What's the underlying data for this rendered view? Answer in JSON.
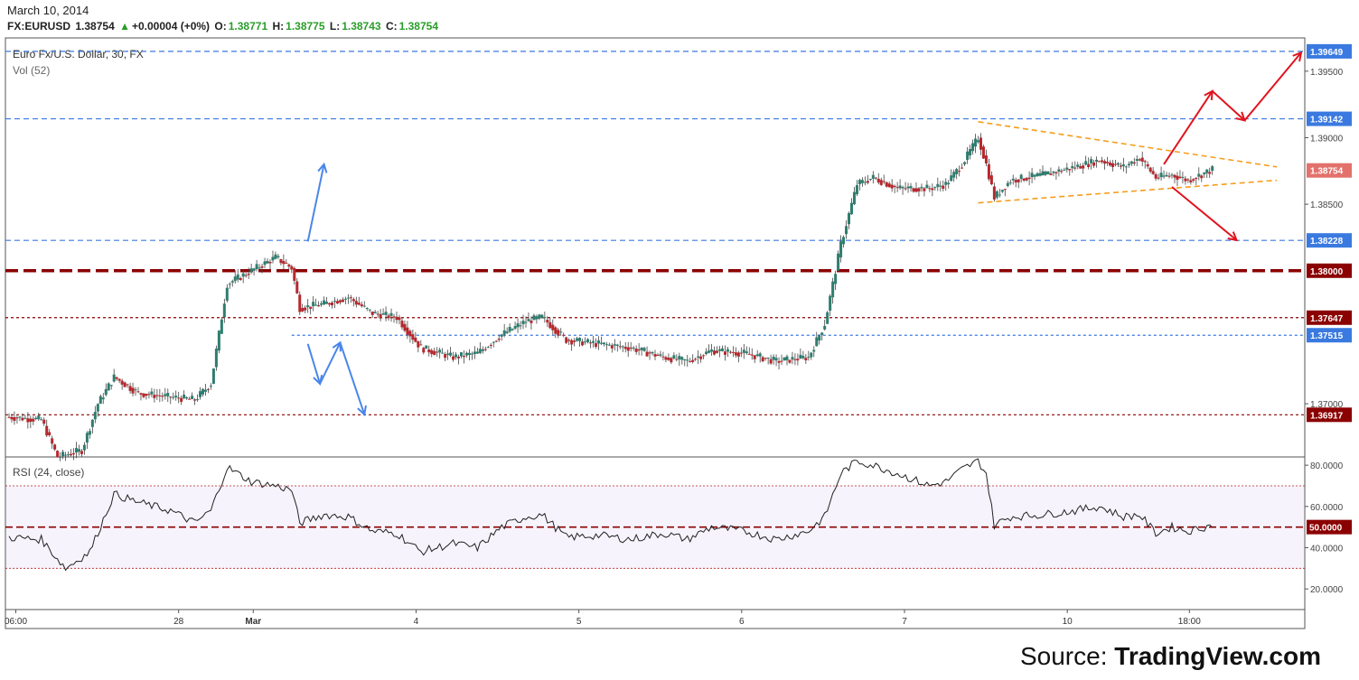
{
  "header": {
    "date": "March 10, 2014",
    "symbol": "FX:EURUSD",
    "last": "1.38754",
    "change_arrow": "up-triangle-icon",
    "change": "+0.00004 (+0%)",
    "open_label": "O:",
    "open": "1.38771",
    "high_label": "H:",
    "high": "1.38775",
    "low_label": "L:",
    "low": "1.38743",
    "close_label": "C:",
    "close": "1.38754"
  },
  "colors": {
    "up": "#2a9d2a",
    "candle_up": "#2f7d6f",
    "candle_down": "#b5282d",
    "level_blue": "#3a7ae0",
    "level_red": "#8b0000",
    "price_tag": "#e3716b",
    "pattern": "#f59d1b",
    "arrow_red": "#e0141e",
    "arrow_blue": "#4a86e8"
  },
  "chart_data": [
    {
      "type": "candlestick",
      "title": "Euro Fx/U.S. Dollar, 30, FX",
      "subtitle": "Vol (52)",
      "ylim": [
        1.366,
        1.3975
      ],
      "x_tick_labels": [
        "06:00",
        "28",
        "Mar",
        "4",
        "5",
        "6",
        "7",
        "10",
        "18:00"
      ],
      "y_tick_labels": [
        "1.39500",
        "1.39000",
        "1.38500",
        "1.37000"
      ],
      "y_ticks": [
        1.395,
        1.39,
        1.385,
        1.37
      ],
      "level_labels": [
        "1.39649",
        "1.39142",
        "1.38754",
        "1.38228",
        "1.38000",
        "1.37647",
        "1.37515",
        "1.36917"
      ],
      "levels": [
        {
          "value": 1.39649,
          "label": "1.39649",
          "color": "#3a7ae0",
          "style": "dashed"
        },
        {
          "value": 1.39142,
          "label": "1.39142",
          "color": "#3a7ae0",
          "style": "dashed"
        },
        {
          "value": 1.38228,
          "label": "1.38228",
          "color": "#3a7ae0",
          "style": "dashed"
        },
        {
          "value": 1.38,
          "label": "1.38000",
          "color": "#8b0000",
          "style": "thick-dashed"
        },
        {
          "value": 1.37647,
          "label": "1.37647",
          "color": "#8b0000",
          "style": "dotted"
        },
        {
          "value": 1.37515,
          "label": "1.37515",
          "color": "#3a7ae0",
          "style": "dotted"
        },
        {
          "value": 1.36917,
          "label": "1.36917",
          "color": "#8b0000",
          "style": "dotted"
        }
      ],
      "price_label": "1.38754",
      "price": 1.38754,
      "price_path": [
        {
          "x": 0,
          "y": 1.369
        },
        {
          "x": 4,
          "y": 1.3688
        },
        {
          "x": 6,
          "y": 1.366
        },
        {
          "x": 9,
          "y": 1.3665
        },
        {
          "x": 11,
          "y": 1.37
        },
        {
          "x": 13,
          "y": 1.372
        },
        {
          "x": 16,
          "y": 1.3708
        },
        {
          "x": 20,
          "y": 1.3705
        },
        {
          "x": 23,
          "y": 1.3703
        },
        {
          "x": 25,
          "y": 1.3715
        },
        {
          "x": 27,
          "y": 1.379
        },
        {
          "x": 30,
          "y": 1.38
        },
        {
          "x": 33,
          "y": 1.381
        },
        {
          "x": 35,
          "y": 1.3802
        },
        {
          "x": 36,
          "y": 1.3772
        },
        {
          "x": 39,
          "y": 1.3775
        },
        {
          "x": 42,
          "y": 1.378
        },
        {
          "x": 45,
          "y": 1.3768
        },
        {
          "x": 48,
          "y": 1.3765
        },
        {
          "x": 51,
          "y": 1.3742
        },
        {
          "x": 55,
          "y": 1.3735
        },
        {
          "x": 58,
          "y": 1.3738
        },
        {
          "x": 61,
          "y": 1.3752
        },
        {
          "x": 64,
          "y": 1.3762
        },
        {
          "x": 66,
          "y": 1.3765
        },
        {
          "x": 69,
          "y": 1.3748
        },
        {
          "x": 73,
          "y": 1.3745
        },
        {
          "x": 77,
          "y": 1.3742
        },
        {
          "x": 81,
          "y": 1.3735
        },
        {
          "x": 84,
          "y": 1.3732
        },
        {
          "x": 87,
          "y": 1.374
        },
        {
          "x": 91,
          "y": 1.3738
        },
        {
          "x": 95,
          "y": 1.3732
        },
        {
          "x": 99,
          "y": 1.3735
        },
        {
          "x": 101,
          "y": 1.376
        },
        {
          "x": 103,
          "y": 1.382
        },
        {
          "x": 105,
          "y": 1.3865
        },
        {
          "x": 107,
          "y": 1.387
        },
        {
          "x": 110,
          "y": 1.3862
        },
        {
          "x": 114,
          "y": 1.3862
        },
        {
          "x": 116,
          "y": 1.3865
        },
        {
          "x": 118,
          "y": 1.388
        },
        {
          "x": 120,
          "y": 1.39
        },
        {
          "x": 121,
          "y": 1.388
        },
        {
          "x": 122,
          "y": 1.3855
        },
        {
          "x": 124,
          "y": 1.3868
        },
        {
          "x": 128,
          "y": 1.3872
        },
        {
          "x": 132,
          "y": 1.3878
        },
        {
          "x": 135,
          "y": 1.3883
        },
        {
          "x": 138,
          "y": 1.3878
        },
        {
          "x": 140,
          "y": 1.3885
        },
        {
          "x": 142,
          "y": 1.387
        },
        {
          "x": 144,
          "y": 1.3872
        },
        {
          "x": 146,
          "y": 1.3868
        },
        {
          "x": 149,
          "y": 1.3876
        }
      ],
      "pattern": {
        "name": "symmetrical triangle",
        "upper": [
          {
            "x": 120,
            "y": 1.3912
          },
          {
            "x": 157,
            "y": 1.3878
          }
        ],
        "lower": [
          {
            "x": 120,
            "y": 1.3851
          },
          {
            "x": 157,
            "y": 1.3868
          }
        ]
      }
    },
    {
      "type": "line",
      "title": "RSI (24, close)",
      "ylim": [
        10,
        84
      ],
      "y_tick_labels": [
        "80.0000",
        "60.0000",
        "40.0000",
        "20.0000"
      ],
      "y_ticks": [
        80,
        60,
        40,
        20
      ],
      "bands": [
        70,
        30
      ],
      "midline_label": "50.0000",
      "midline": 50,
      "values": [
        {
          "x": 0,
          "y": 45
        },
        {
          "x": 4,
          "y": 44
        },
        {
          "x": 7,
          "y": 30
        },
        {
          "x": 10,
          "y": 38
        },
        {
          "x": 13,
          "y": 66
        },
        {
          "x": 16,
          "y": 62
        },
        {
          "x": 20,
          "y": 58
        },
        {
          "x": 23,
          "y": 52
        },
        {
          "x": 25,
          "y": 58
        },
        {
          "x": 27,
          "y": 79
        },
        {
          "x": 30,
          "y": 72
        },
        {
          "x": 33,
          "y": 70
        },
        {
          "x": 35,
          "y": 68
        },
        {
          "x": 36,
          "y": 52
        },
        {
          "x": 39,
          "y": 56
        },
        {
          "x": 42,
          "y": 55
        },
        {
          "x": 45,
          "y": 48
        },
        {
          "x": 48,
          "y": 47
        },
        {
          "x": 51,
          "y": 38
        },
        {
          "x": 55,
          "y": 42
        },
        {
          "x": 58,
          "y": 40
        },
        {
          "x": 61,
          "y": 50
        },
        {
          "x": 64,
          "y": 55
        },
        {
          "x": 66,
          "y": 56
        },
        {
          "x": 69,
          "y": 45
        },
        {
          "x": 73,
          "y": 46
        },
        {
          "x": 77,
          "y": 44
        },
        {
          "x": 81,
          "y": 47
        },
        {
          "x": 84,
          "y": 44
        },
        {
          "x": 87,
          "y": 50
        },
        {
          "x": 91,
          "y": 48
        },
        {
          "x": 95,
          "y": 44
        },
        {
          "x": 99,
          "y": 48
        },
        {
          "x": 101,
          "y": 55
        },
        {
          "x": 103,
          "y": 76
        },
        {
          "x": 105,
          "y": 82
        },
        {
          "x": 107,
          "y": 80
        },
        {
          "x": 110,
          "y": 76
        },
        {
          "x": 114,
          "y": 70
        },
        {
          "x": 116,
          "y": 72
        },
        {
          "x": 118,
          "y": 78
        },
        {
          "x": 120,
          "y": 82
        },
        {
          "x": 121,
          "y": 76
        },
        {
          "x": 122,
          "y": 51
        },
        {
          "x": 124,
          "y": 55
        },
        {
          "x": 128,
          "y": 56
        },
        {
          "x": 132,
          "y": 58
        },
        {
          "x": 135,
          "y": 60
        },
        {
          "x": 138,
          "y": 55
        },
        {
          "x": 140,
          "y": 56
        },
        {
          "x": 142,
          "y": 47
        },
        {
          "x": 144,
          "y": 50
        },
        {
          "x": 146,
          "y": 48
        },
        {
          "x": 149,
          "y": 51
        }
      ]
    }
  ],
  "footer": {
    "source_prefix": "Source: ",
    "source_name": "TradingView.com"
  }
}
